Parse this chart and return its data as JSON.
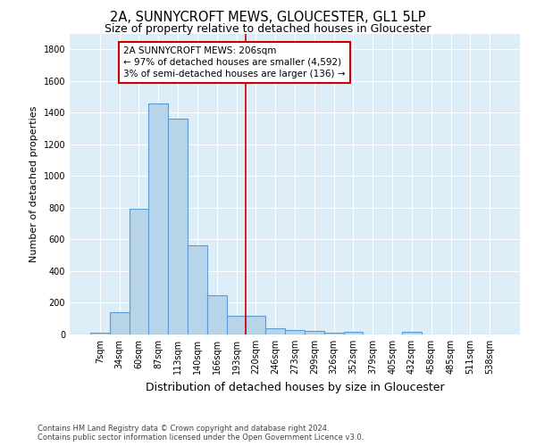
{
  "title": "2A, SUNNYCROFT MEWS, GLOUCESTER, GL1 5LP",
  "subtitle": "Size of property relative to detached houses in Gloucester",
  "xlabel": "Distribution of detached houses by size in Gloucester",
  "ylabel": "Number of detached properties",
  "categories": [
    "7sqm",
    "34sqm",
    "60sqm",
    "87sqm",
    "113sqm",
    "140sqm",
    "166sqm",
    "193sqm",
    "220sqm",
    "246sqm",
    "273sqm",
    "299sqm",
    "326sqm",
    "352sqm",
    "379sqm",
    "405sqm",
    "432sqm",
    "458sqm",
    "485sqm",
    "511sqm",
    "538sqm"
  ],
  "values": [
    10,
    140,
    795,
    1460,
    1360,
    565,
    248,
    120,
    120,
    37,
    27,
    25,
    12,
    15,
    0,
    0,
    18,
    0,
    0,
    0,
    0
  ],
  "bar_color": "#b8d4e8",
  "bar_edge_color": "#5b9bd5",
  "vline_color": "#cc0000",
  "annotation_text": "2A SUNNYCROFT MEWS: 206sqm\n← 97% of detached houses are smaller (4,592)\n3% of semi-detached houses are larger (136) →",
  "annotation_box_color": "white",
  "annotation_box_edge_color": "#cc0000",
  "ylim": [
    0,
    1900
  ],
  "yticks": [
    0,
    200,
    400,
    600,
    800,
    1000,
    1200,
    1400,
    1600,
    1800
  ],
  "footer1": "Contains HM Land Registry data © Crown copyright and database right 2024.",
  "footer2": "Contains public sector information licensed under the Open Government Licence v3.0.",
  "bg_color": "#ddeef9",
  "title_fontsize": 10.5,
  "subtitle_fontsize": 9,
  "xlabel_fontsize": 9,
  "ylabel_fontsize": 8,
  "tick_fontsize": 7,
  "annotation_fontsize": 7.5,
  "footer_fontsize": 6
}
